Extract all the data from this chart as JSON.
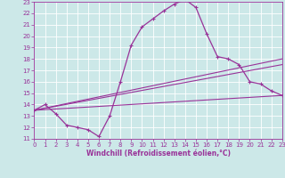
{
  "xlabel": "Windchill (Refroidissement éolien,°C)",
  "bg_color": "#cce8e8",
  "line_color": "#993399",
  "grid_color": "#ffffff",
  "xmin": 0,
  "xmax": 23,
  "ymin": 11,
  "ymax": 23,
  "series1_x": [
    0,
    1,
    2,
    3,
    4,
    5,
    6,
    7,
    8,
    9,
    10,
    11,
    12,
    13,
    14,
    15,
    16,
    17,
    18,
    19,
    20,
    21,
    22,
    23
  ],
  "series1_y": [
    13.5,
    14.0,
    13.2,
    12.2,
    12.0,
    11.8,
    11.2,
    13.0,
    16.0,
    19.2,
    20.8,
    21.5,
    22.2,
    22.8,
    23.2,
    22.5,
    20.2,
    18.2,
    18.0,
    17.5,
    16.0,
    15.8,
    15.2,
    14.8
  ],
  "line2_x": [
    0,
    23
  ],
  "line2_y": [
    13.5,
    18.0
  ],
  "line3_x": [
    0,
    23
  ],
  "line3_y": [
    13.5,
    17.5
  ],
  "line4_x": [
    0,
    23
  ],
  "line4_y": [
    13.5,
    14.8
  ],
  "yticks": [
    11,
    12,
    13,
    14,
    15,
    16,
    17,
    18,
    19,
    20,
    21,
    22,
    23
  ],
  "xticks": [
    0,
    1,
    2,
    3,
    4,
    5,
    6,
    7,
    8,
    9,
    10,
    11,
    12,
    13,
    14,
    15,
    16,
    17,
    18,
    19,
    20,
    21,
    22,
    23
  ],
  "tick_fontsize": 5.0,
  "label_fontsize": 5.5
}
